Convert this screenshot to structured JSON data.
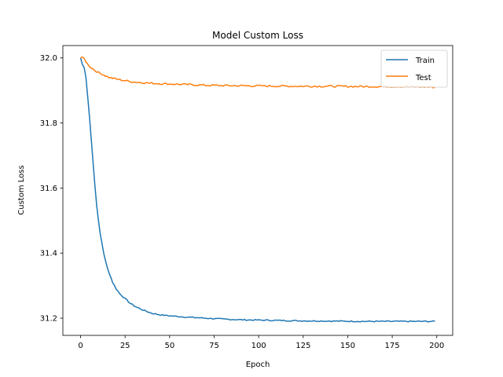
{
  "chart_data": {
    "type": "line",
    "title": "Model Custom Loss",
    "xlabel": "Epoch",
    "ylabel": "Custom Loss",
    "xlim": [
      -9.95,
      208.95
    ],
    "ylim": [
      31.147,
      32.038
    ],
    "xticks": [
      0,
      25,
      50,
      75,
      100,
      125,
      150,
      175,
      200
    ],
    "yticks": [
      31.2,
      31.4,
      31.6,
      31.8,
      32.0
    ],
    "ytick_labels": [
      "31.2",
      "31.4",
      "31.6",
      "31.8",
      "32.0"
    ],
    "grid": false,
    "legend": {
      "position": "top-right"
    },
    "series": [
      {
        "name": "Train",
        "color": "#1f77b4",
        "keypoints": [
          [
            0,
            32.0
          ],
          [
            1,
            31.98
          ],
          [
            2,
            31.97
          ],
          [
            3,
            31.94
          ],
          [
            4,
            31.88
          ],
          [
            5,
            31.82
          ],
          [
            6,
            31.75
          ],
          [
            7,
            31.68
          ],
          [
            8,
            31.61
          ],
          [
            9,
            31.55
          ],
          [
            10,
            31.5
          ],
          [
            11,
            31.46
          ],
          [
            12,
            31.43
          ],
          [
            13,
            31.4
          ],
          [
            14,
            31.375
          ],
          [
            15,
            31.355
          ],
          [
            16,
            31.34
          ],
          [
            17,
            31.325
          ],
          [
            18,
            31.31
          ],
          [
            20,
            31.29
          ],
          [
            22,
            31.275
          ],
          [
            25,
            31.26
          ],
          [
            28,
            31.245
          ],
          [
            31,
            31.235
          ],
          [
            35,
            31.225
          ],
          [
            40,
            31.215
          ],
          [
            45,
            31.21
          ],
          [
            50,
            31.207
          ],
          [
            60,
            31.203
          ],
          [
            70,
            31.2
          ],
          [
            80,
            31.197
          ],
          [
            90,
            31.195
          ],
          [
            100,
            31.194
          ],
          [
            120,
            31.192
          ],
          [
            140,
            31.191
          ],
          [
            160,
            31.19
          ],
          [
            180,
            31.19
          ],
          [
            199,
            31.19
          ]
        ],
        "noise": 0.0018
      },
      {
        "name": "Test",
        "color": "#ff7f0e",
        "keypoints": [
          [
            0,
            32.0
          ],
          [
            1,
            32.003
          ],
          [
            2,
            31.998
          ],
          [
            3,
            31.99
          ],
          [
            4,
            31.98
          ],
          [
            5,
            31.975
          ],
          [
            6,
            31.97
          ],
          [
            8,
            31.962
          ],
          [
            10,
            31.955
          ],
          [
            13,
            31.948
          ],
          [
            16,
            31.94
          ],
          [
            20,
            31.935
          ],
          [
            25,
            31.93
          ],
          [
            30,
            31.926
          ],
          [
            40,
            31.922
          ],
          [
            50,
            31.92
          ],
          [
            60,
            31.918
          ],
          [
            70,
            31.916
          ],
          [
            80,
            31.915
          ],
          [
            100,
            31.914
          ],
          [
            120,
            31.913
          ],
          [
            140,
            31.913
          ],
          [
            160,
            31.912
          ],
          [
            180,
            31.912
          ],
          [
            199,
            31.91
          ]
        ],
        "noise": 0.0028
      }
    ]
  }
}
